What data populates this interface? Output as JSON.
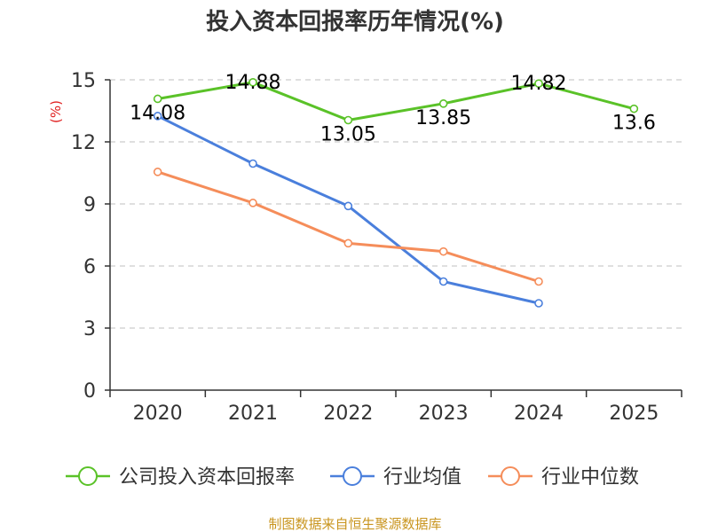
{
  "chart_data": {
    "type": "line",
    "title": "投入资本回报率历年情况(%)",
    "ylabel": "(%)",
    "xlabel": "",
    "ylim": [
      0,
      15
    ],
    "yticks": [
      0,
      3,
      6,
      9,
      12,
      15
    ],
    "categories": [
      "2020",
      "2021",
      "2022",
      "2023",
      "2024",
      "2025"
    ],
    "grid": true,
    "legend_position": "bottom",
    "series": [
      {
        "name": "公司投入资本回报率",
        "color": "#5ac228",
        "values": [
          14.08,
          14.88,
          13.05,
          13.85,
          14.82,
          13.6
        ],
        "labels": [
          "14.08",
          "14.88",
          "13.05",
          "13.85",
          "14.82",
          "13.6"
        ]
      },
      {
        "name": "行业均值",
        "color": "#4a7fdc",
        "values": [
          13.25,
          10.95,
          8.9,
          5.25,
          4.2,
          null
        ]
      },
      {
        "name": "行业中位数",
        "color": "#f58d5a",
        "values": [
          10.55,
          9.05,
          7.1,
          6.7,
          5.25,
          null
        ]
      }
    ]
  },
  "footer": {
    "source": "制图数据来自恒生聚源数据库"
  }
}
